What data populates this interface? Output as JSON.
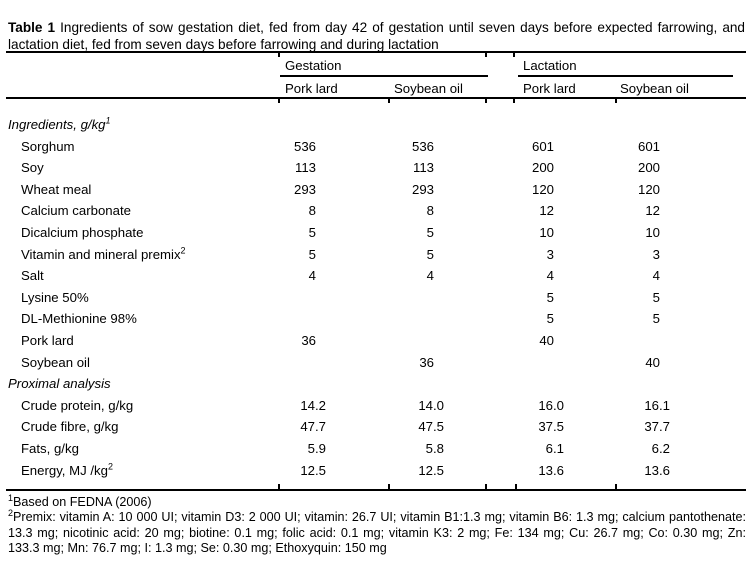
{
  "caption": {
    "label": "Table 1",
    "text": "Ingredients of sow gestation diet, fed from day 42 of gestation until seven days before expected farrowing, and lactation diet, fed from seven days before farrowing and during lactation"
  },
  "table": {
    "groups": [
      {
        "label": "Gestation",
        "cols": [
          "Pork lard",
          "Soybean oil"
        ]
      },
      {
        "label": "Lactation",
        "cols": [
          "Pork lard",
          "Soybean oil"
        ]
      }
    ],
    "sections": [
      {
        "header": "Ingredients, g/kg",
        "header_sup": "1",
        "rows": [
          {
            "label": "Sorghum",
            "values": [
              "536",
              "536",
              "601",
              "601"
            ]
          },
          {
            "label": "Soy",
            "values": [
              "113",
              "113",
              "200",
              "200"
            ]
          },
          {
            "label": "Wheat meal",
            "values": [
              "293",
              "293",
              "120",
              "120"
            ]
          },
          {
            "label": "Calcium carbonate",
            "values": [
              "8",
              "8",
              "12",
              "12"
            ]
          },
          {
            "label": "Dicalcium phosphate",
            "values": [
              "5",
              "5",
              "10",
              "10"
            ]
          },
          {
            "label": "Vitamin and mineral premix",
            "sup": "2",
            "values": [
              "5",
              "5",
              "3",
              "3"
            ]
          },
          {
            "label": "Salt",
            "values": [
              "4",
              "4",
              "4",
              "4"
            ]
          },
          {
            "label": "Lysine 50%",
            "values": [
              "",
              "",
              "5",
              "5"
            ]
          },
          {
            "label": "DL-Methionine 98%",
            "values": [
              "",
              "",
              "5",
              "5"
            ]
          },
          {
            "label": "Pork lard",
            "values": [
              "36",
              "",
              "40",
              ""
            ]
          },
          {
            "label": "Soybean oil",
            "values": [
              "",
              "36",
              "",
              "40"
            ]
          }
        ]
      },
      {
        "header": "Proximal analysis",
        "rows": [
          {
            "label": "Crude protein, g/kg",
            "values": [
              "14.2",
              "14.0",
              "16.0",
              "16.1"
            ]
          },
          {
            "label": "Crude fibre, g/kg",
            "values": [
              "47.7",
              "47.5",
              "37.5",
              "37.7"
            ]
          },
          {
            "label": "Fats, g/kg",
            "values": [
              "5.9",
              "5.8",
              "6.1",
              "6.2"
            ]
          },
          {
            "label": "Energy, MJ /kg",
            "sup": "2",
            "values": [
              "12.5",
              "12.5",
              "13.6",
              "13.6"
            ]
          }
        ]
      }
    ]
  },
  "footnotes": [
    {
      "sup": "1",
      "text": "Based on FEDNA (2006)"
    },
    {
      "sup": "2",
      "text": "Premix: vitamin A: 10 000 UI; vitamin D3: 2 000 UI; vitamin: 26.7 UI; vitamin B1:1.3 mg; vitamin B6: 1.3 mg; calcium pantothenate: 13.3 mg; nicotinic acid: 20 mg; biotine: 0.1 mg; folic acid: 0.1 mg; vitamin K3: 2 mg; Fe: 134 mg; Cu: 26.7 mg; Co: 0.30 mg; Zn: 133.3 mg; Mn: 76.7 mg; I: 1.3 mg; Se: 0.30 mg; Ethoxyquin: 150 mg"
    }
  ]
}
